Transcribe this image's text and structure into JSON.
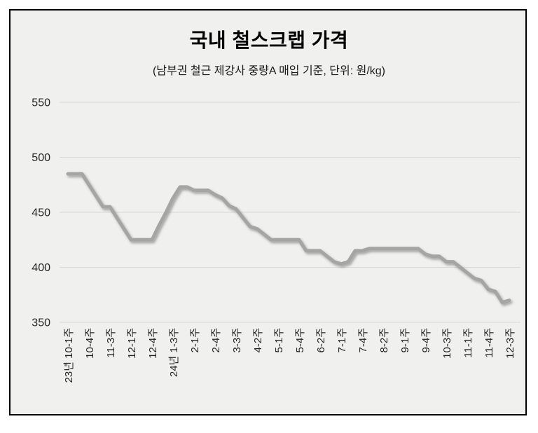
{
  "chart": {
    "title": "국내 철스크랩 가격",
    "subtitle": "(남부권 철근 제강사 중량A 매입 기준, 단위: 원/kg)"
  },
  "chart_data": {
    "type": "line",
    "title": "국내 철스크랩 가격",
    "subtitle": "(남부권 철근 제강사 중량A 매입 기준, 단위: 원/kg)",
    "ylabel": "원/kg",
    "ylim": [
      350,
      550
    ],
    "yticks": [
      350,
      400,
      450,
      500,
      550
    ],
    "grid": "horizontal",
    "legend": "none",
    "x_labels": [
      "23년 10-1주",
      "10-4주",
      "11-3주",
      "12-1주",
      "12-4주",
      "24년 1-3주",
      "2-1주",
      "2-4주",
      "3-3주",
      "4-2주",
      "5-1주",
      "5-4주",
      "6-2주",
      "7-1주",
      "7-4주",
      "8-2주",
      "9-1주",
      "9-4주",
      "10-3주",
      "11-1주",
      "11-4주",
      "12-3주"
    ],
    "points_per_label_interval": 3,
    "series": [
      {
        "name": "국내 철스크랩 가격",
        "color": "#a5a5a5",
        "values": [
          485,
          485,
          485,
          475,
          465,
          455,
          455,
          445,
          435,
          425,
          425,
          425,
          425,
          438,
          450,
          463,
          473,
          473,
          470,
          470,
          470,
          466,
          463,
          456,
          453,
          445,
          437,
          435,
          430,
          425,
          425,
          425,
          425,
          425,
          415,
          415,
          415,
          410,
          405,
          403,
          405,
          415,
          415,
          417,
          417,
          417,
          417,
          417,
          417,
          417,
          417,
          412,
          410,
          410,
          405,
          405,
          400,
          395,
          390,
          388,
          380,
          378,
          368,
          370
        ]
      }
    ]
  },
  "style": {
    "frame_border_color": "#000000",
    "plot_background": "#f0f0ef",
    "gridline_color": "#d9d9d9",
    "line_color": "#a5a5a5",
    "text_color": "#262626"
  }
}
